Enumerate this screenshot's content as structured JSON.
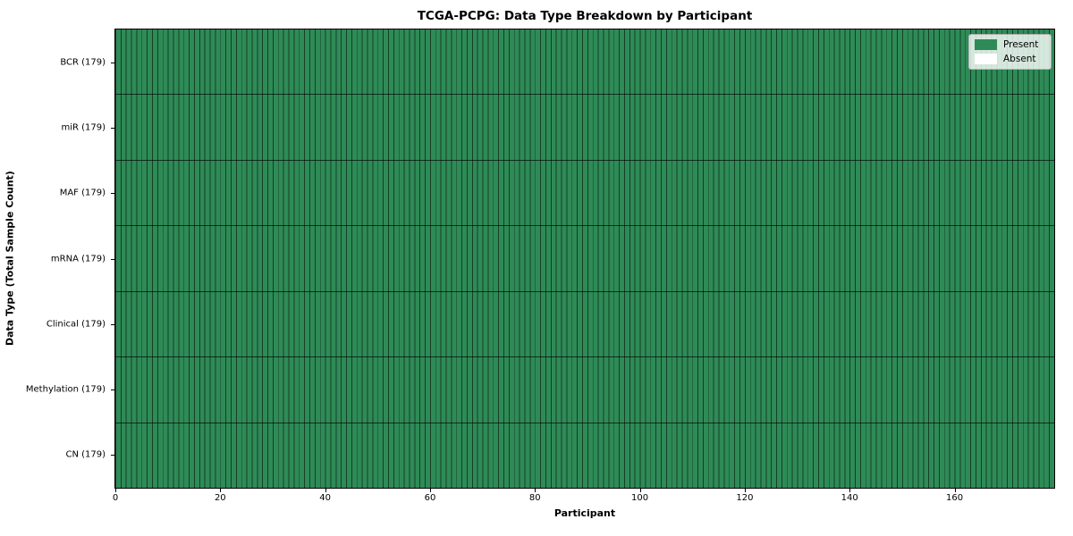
{
  "title": "TCGA-PCPG: Data Type Breakdown by Participant",
  "axes": {
    "xlabel": "Participant",
    "ylabel": "Data Type (Total Sample Count)",
    "x_ticks": [
      0,
      20,
      40,
      60,
      80,
      100,
      120,
      140,
      160
    ],
    "x_range": [
      0,
      179
    ]
  },
  "legend": {
    "entries": [
      {
        "label": "Present",
        "color": "#2e8b57"
      },
      {
        "label": "Absent",
        "color": "#ffffff"
      }
    ],
    "position": "upper-right"
  },
  "colors": {
    "present": "#2e8b57",
    "absent": "#ffffff",
    "cell_border": "rgba(0,0,0,0.55)",
    "row_separator": "rgba(0,0,0,0.65)",
    "spine": "#000000",
    "legend_bg": "rgba(255,255,255,0.8)",
    "legend_border": "#b0b0b0"
  },
  "chart_data": {
    "type": "heatmap",
    "title": "TCGA-PCPG: Data Type Breakdown by Participant",
    "xlabel": "Participant",
    "ylabel": "Data Type (Total Sample Count)",
    "x_range": [
      0,
      179
    ],
    "n_participants": 179,
    "x_tick_labels": [
      0,
      20,
      40,
      60,
      80,
      100,
      120,
      140,
      160
    ],
    "categories": [
      "BCR (179)",
      "miR (179)",
      "MAF (179)",
      "mRNA (179)",
      "Clinical (179)",
      "Methylation (179)",
      "CN (179)"
    ],
    "rows": [
      {
        "label": "BCR (179)",
        "data_type": "BCR",
        "total_sample_count": 179,
        "present_participants": 179,
        "absent_participants": 0
      },
      {
        "label": "miR (179)",
        "data_type": "miR",
        "total_sample_count": 179,
        "present_participants": 179,
        "absent_participants": 0
      },
      {
        "label": "MAF (179)",
        "data_type": "MAF",
        "total_sample_count": 179,
        "present_participants": 179,
        "absent_participants": 0
      },
      {
        "label": "mRNA (179)",
        "data_type": "mRNA",
        "total_sample_count": 179,
        "present_participants": 179,
        "absent_participants": 0
      },
      {
        "label": "Clinical (179)",
        "data_type": "Clinical",
        "total_sample_count": 179,
        "present_participants": 179,
        "absent_participants": 0
      },
      {
        "label": "Methylation (179)",
        "data_type": "Methylation",
        "total_sample_count": 179,
        "present_participants": 179,
        "absent_participants": 0
      },
      {
        "label": "CN (179)",
        "data_type": "CN",
        "total_sample_count": 179,
        "present_participants": 179,
        "absent_participants": 0
      }
    ],
    "legend_entries": [
      "Present",
      "Absent"
    ],
    "legend_position": "upper right",
    "grid": "per-participant vertical cell separators and per-row horizontal separators"
  }
}
